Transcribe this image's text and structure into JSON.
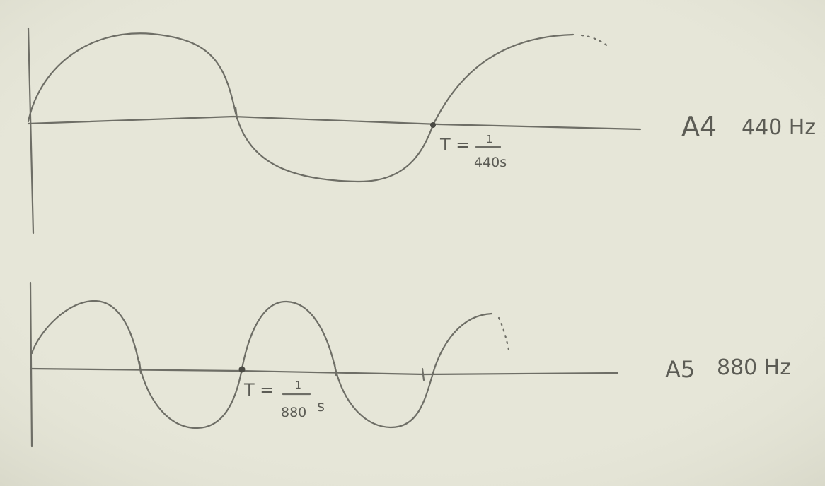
{
  "paper_color": "#e6e6d8",
  "ink_color": "#6e6e66",
  "waves": [
    {
      "note": "A4",
      "frequency": "440 Hz",
      "period_prefix": "T =",
      "period_numerator": "1",
      "period_denominator": "440s",
      "period_unit": "",
      "cycles_shown": 1.25
    },
    {
      "note": "A5",
      "frequency": "880 Hz",
      "period_prefix": "T =",
      "period_numerator": "1",
      "period_denominator": "880",
      "period_unit": "s",
      "cycles_shown": 2.5
    }
  ]
}
